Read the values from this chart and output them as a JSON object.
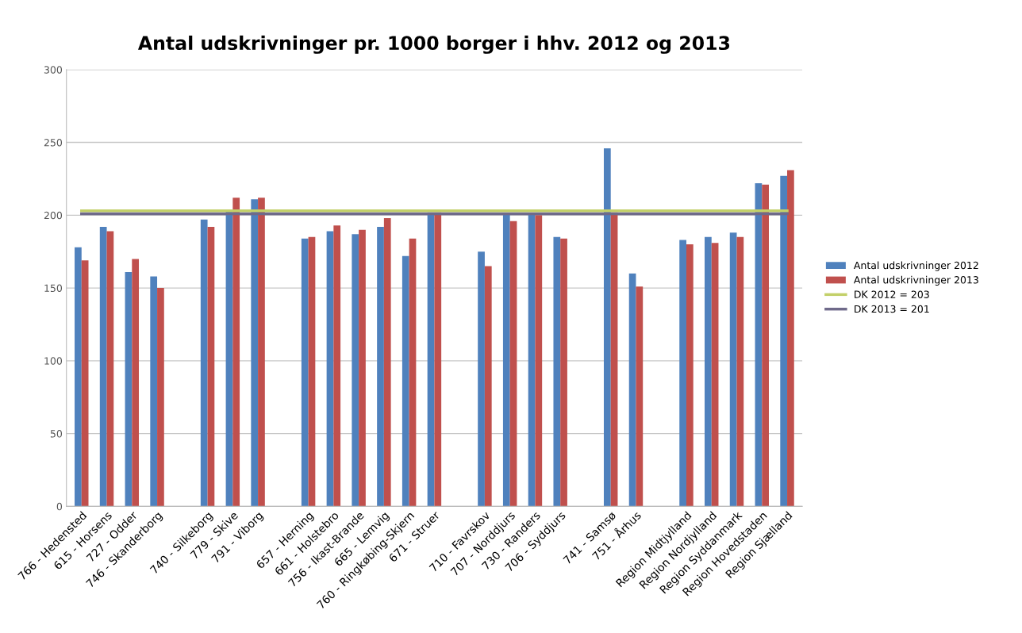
{
  "chart_data": {
    "type": "bar",
    "title": "Antal udskrivninger pr. 1000 borger i hhv. 2012 og 2013",
    "categories": [
      "766 - Hedensted",
      "615 - Horsens",
      "727 - Odder",
      "746 - Skanderborg",
      null,
      "740 - Silkeborg",
      "779 - Skive",
      "791 - Viborg",
      null,
      "657 - Herning",
      "661 - Holstebro",
      "756 - Ikast-Brande",
      "665 - Lemvig",
      "760 - Ringkøbing-Skjern",
      "671 - Struer",
      null,
      "710 - Favrskov",
      "707 - Norddjurs",
      "730 - Randers",
      "706 - Syddjurs",
      null,
      "741 - Samsø",
      "751 - Århus",
      null,
      "Region Midtjylland",
      "Region Nordjylland",
      "Region Syddanmark",
      "Region Hovedstaden",
      "Region Sjælland"
    ],
    "series": [
      {
        "name": "Antal udskrivninger 2012",
        "color": "#4f81bd",
        "values": [
          178,
          192,
          161,
          158,
          null,
          197,
          203,
          211,
          null,
          184,
          189,
          187,
          192,
          172,
          202,
          null,
          175,
          201,
          201,
          185,
          null,
          246,
          160,
          null,
          183,
          185,
          188,
          222,
          227
        ]
      },
      {
        "name": "Antal udskrivninger 2013",
        "color": "#c0504d",
        "values": [
          169,
          189,
          170,
          150,
          null,
          192,
          212,
          212,
          null,
          185,
          193,
          190,
          198,
          184,
          202,
          null,
          165,
          196,
          200,
          184,
          null,
          202,
          151,
          null,
          180,
          181,
          185,
          221,
          231
        ]
      },
      {
        "name": "DK 2012 = 203",
        "type": "line",
        "color": "#c3d069",
        "values": [
          203,
          203,
          203,
          203,
          203,
          203,
          203,
          203,
          203,
          203,
          203,
          203,
          203,
          203,
          203,
          203,
          203,
          203,
          203,
          203,
          203,
          203,
          203,
          203,
          203,
          203,
          203,
          203,
          203
        ]
      },
      {
        "name": "DK 2013 = 201",
        "type": "line",
        "color": "#6f6a8a",
        "values": [
          201,
          201,
          201,
          201,
          201,
          201,
          201,
          201,
          201,
          201,
          201,
          201,
          201,
          201,
          201,
          201,
          201,
          201,
          201,
          201,
          201,
          201,
          201,
          201,
          201,
          201,
          201,
          201,
          201
        ]
      }
    ],
    "ylim": [
      0,
      300
    ],
    "yticks": [
      0,
      50,
      100,
      150,
      200,
      250,
      300
    ],
    "grid": "y",
    "legend": "right"
  }
}
